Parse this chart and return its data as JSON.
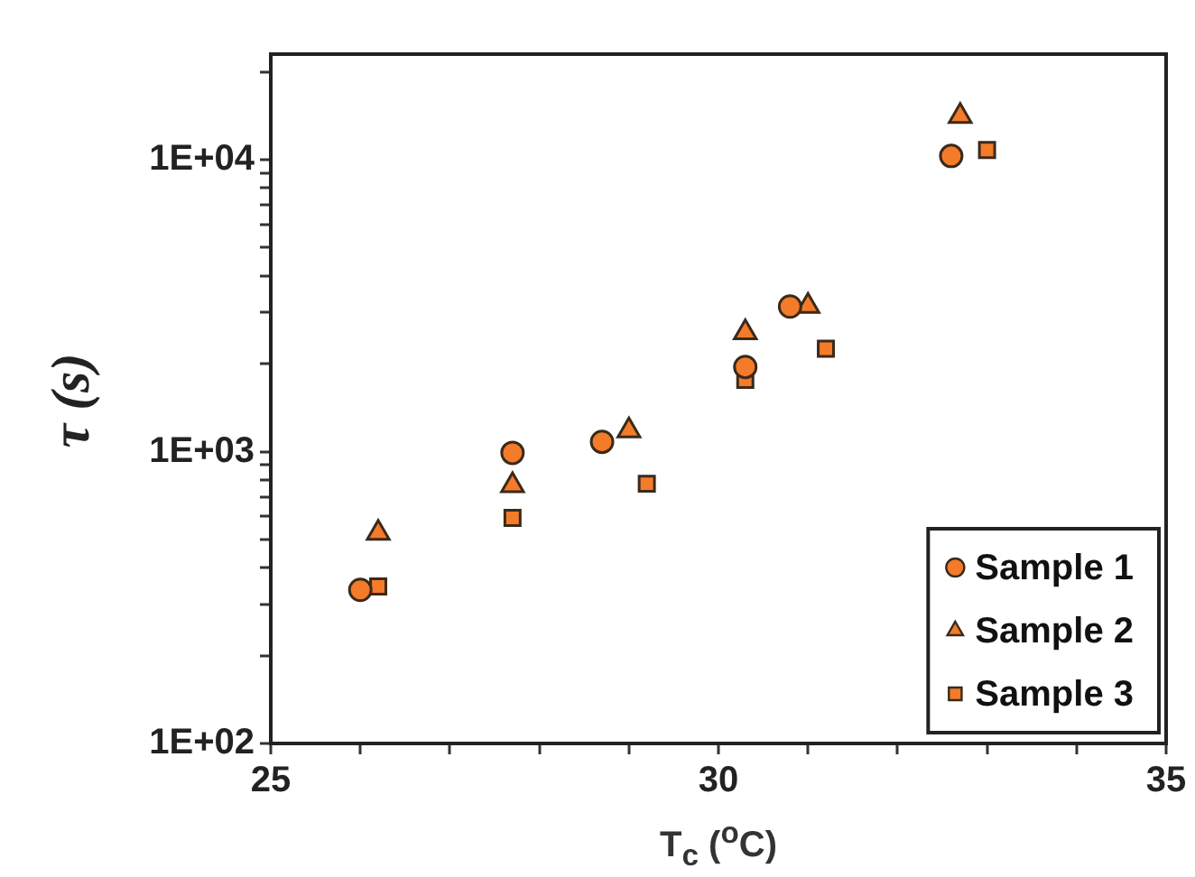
{
  "chart_data": {
    "type": "scatter",
    "xlabel": "T$_{c}$ ($^{o}$C)",
    "ylabel": "τ (s)",
    "xlim": [
      25,
      35
    ],
    "xticks": [
      25,
      {
        "value": 26,
        "label": null
      },
      {
        "value": 27,
        "label": null
      },
      {
        "value": 28,
        "label": null
      },
      {
        "value": 29,
        "label": null
      },
      30,
      {
        "value": 31,
        "label": null
      },
      {
        "value": 32,
        "label": null
      },
      {
        "value": 33,
        "label": null
      },
      {
        "value": 34,
        "label": null
      },
      35
    ],
    "ylim": [
      100,
      23000
    ],
    "log": "y",
    "yticks": [
      {
        "value": 100,
        "label": "1E+02"
      },
      {
        "value": 200,
        "label": null
      },
      {
        "value": 300,
        "label": null
      },
      {
        "value": 400,
        "label": null
      },
      {
        "value": 500,
        "label": null
      },
      {
        "value": 600,
        "label": null
      },
      {
        "value": 700,
        "label": null
      },
      {
        "value": 800,
        "label": null
      },
      {
        "value": 900,
        "label": null
      },
      {
        "value": 1000,
        "label": "1E+03"
      },
      {
        "value": 2000,
        "label": null
      },
      {
        "value": 3000,
        "label": null
      },
      {
        "value": 4000,
        "label": null
      },
      {
        "value": 5000,
        "label": null
      },
      {
        "value": 6000,
        "label": null
      },
      {
        "value": 7000,
        "label": null
      },
      {
        "value": 8000,
        "label": null
      },
      {
        "value": 9000,
        "label": null
      },
      {
        "value": 10000,
        "label": "1E+04"
      },
      {
        "value": 20000,
        "label": null
      }
    ],
    "grid": false,
    "legend": "bottom right",
    "series": [
      {
        "name": "Sample 1",
        "color": "#f47b2a",
        "marker": "circle",
        "x": [
          26.0,
          27.7,
          28.7,
          30.3,
          30.8,
          32.6
        ],
        "values": [
          336,
          990,
          1080,
          1950,
          3140,
          10300
        ]
      },
      {
        "name": "Sample 2",
        "color": "#f47b2a",
        "marker": "triangle",
        "x": [
          26.2,
          27.7,
          29.0,
          30.3,
          31.0,
          32.7
        ],
        "values": [
          526,
          766,
          1180,
          2560,
          3150,
          14100
        ]
      },
      {
        "name": "Sample 3",
        "color": "#f47b2a",
        "marker": "square",
        "x": [
          26.2,
          27.7,
          29.2,
          30.3,
          31.2,
          33.0
        ],
        "values": [
          345,
          593,
          776,
          1760,
          2250,
          10800
        ]
      }
    ]
  }
}
